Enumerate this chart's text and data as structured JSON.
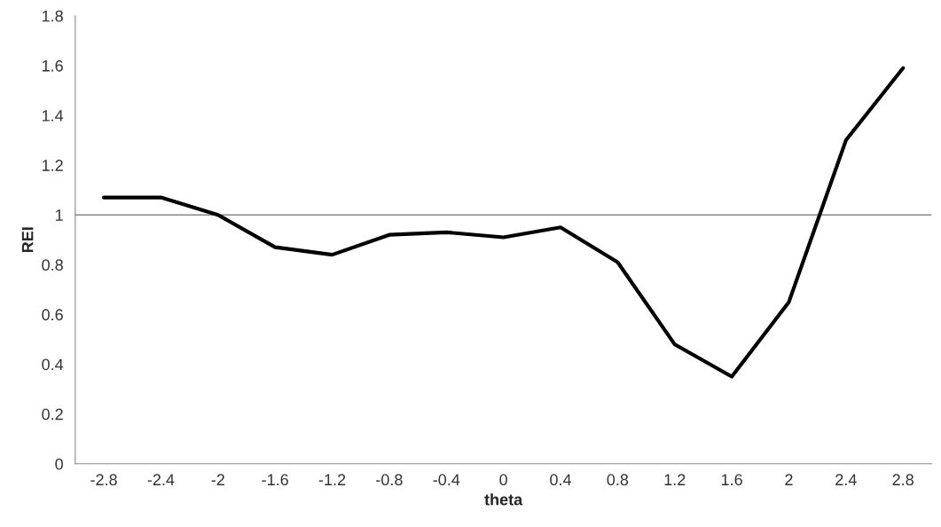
{
  "chart_data": {
    "type": "line",
    "xlabel": "theta",
    "ylabel": "REI",
    "categories": [
      "-2.8",
      "-2.4",
      "-2",
      "-1.6",
      "-1.2",
      "-0.8",
      "-0.4",
      "0",
      "0.4",
      "0.8",
      "1.2",
      "1.6",
      "2",
      "2.4",
      "2.8"
    ],
    "series": [
      {
        "color": "#000000",
        "values": [
          1.07,
          1.07,
          1.0,
          0.87,
          0.84,
          0.92,
          0.93,
          0.91,
          0.95,
          0.81,
          0.48,
          0.35,
          0.65,
          1.3,
          1.59
        ]
      }
    ],
    "ylim": [
      0,
      1.8
    ],
    "yticks": [
      0,
      0.2,
      0.4,
      0.6,
      0.8,
      1,
      1.2,
      1.4,
      1.6,
      1.8
    ],
    "ref_lines": [
      {
        "axis": "y",
        "value": 1
      }
    ],
    "grid": false,
    "legend": false,
    "marker": "none",
    "line_style": "solid"
  }
}
